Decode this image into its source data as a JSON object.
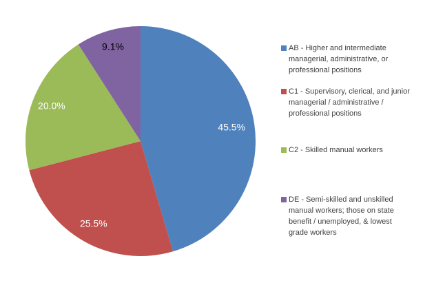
{
  "chart_data": {
    "type": "pie",
    "title": "",
    "keys": [
      "AB",
      "C1",
      "C2",
      "DE"
    ],
    "labels": [
      "45.5%",
      "25.5%",
      "20.0%",
      "9.1%"
    ],
    "values": [
      45.5,
      25.5,
      20.0,
      9.1
    ],
    "colors": [
      "#4F81BD",
      "#C0504D",
      "#9BBB59",
      "#8064A2"
    ],
    "label_colors": [
      "#FFFFFF",
      "#FFFFFF",
      "#FFFFFF",
      "#000000"
    ],
    "label_radius_factors": [
      0.8,
      0.83,
      0.83,
      0.85
    ],
    "start_angle_deg": 0,
    "direction": "clockwise",
    "legend_position": "right",
    "background": "#FFFFFF",
    "legend": [
      {
        "key": "AB",
        "color": "#4F81BD",
        "label": "AB - Higher and intermediate\nmanagerial, administrative, or\nprofessional positions"
      },
      {
        "key": "C1",
        "color": "#C0504D",
        "label": "C1 - Supervisory, clerical, and junior\nmanagerial / administrative /\nprofessional positions"
      },
      {
        "key": "C2",
        "color": "#9BBB59",
        "label": "C2 - Skilled manual workers"
      },
      {
        "key": "DE",
        "color": "#8064A2",
        "label": "DE - Semi-skilled and unskilled\nmanual workers; those on state\nbenefit / unemployed, & lowest\ngrade workers"
      }
    ]
  }
}
